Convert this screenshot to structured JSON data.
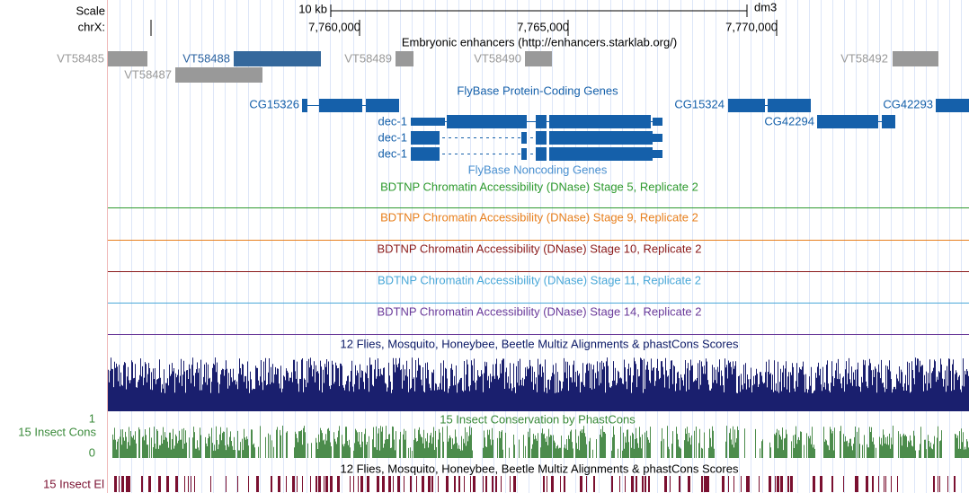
{
  "ruler": {
    "scale": "Scale",
    "scale_bar": "10 kb",
    "assembly": "dm3",
    "chrom": "chrX:",
    "positions": [
      "7,760,000",
      "7,765,000",
      "7,770,000"
    ]
  },
  "enhancers": {
    "title": "Embryonic enhancers (http://enhancers.starklab.org/)",
    "items": [
      "VT58485",
      "VT58488",
      "VT58489",
      "VT58490",
      "VT58492",
      "VT58487"
    ]
  },
  "genes": {
    "title": "FlyBase Protein-Coding Genes",
    "items": [
      "CG15326",
      "dec-1",
      "dec-1",
      "dec-1",
      "CG15324",
      "CG42294",
      "CG42293"
    ],
    "noncoding_title": "FlyBase Noncoding Genes"
  },
  "tracks": [
    "BDTNP Chromatin Accessibility (DNase) Stage 5, Replicate 2",
    "BDTNP Chromatin Accessibility (DNase) Stage 9, Replicate 2",
    "BDTNP Chromatin Accessibility (DNase) Stage 10, Replicate 2",
    "BDTNP Chromatin Accessibility (DNase) Stage 11, Replicate 2",
    "BDTNP Chromatin Accessibility (DNase) Stage 14, Replicate 2"
  ],
  "conservation": {
    "multiz_title": "12 Flies, Mosquito, Honeybee, Beetle Multiz Alignments & phastCons Scores",
    "phastcons_title": "15 Insect Conservation by PhastCons",
    "cons_label": "15 Insect Cons",
    "max_label": "1",
    "min_label": "0",
    "elements_title": "12 Flies, Mosquito, Honeybee, Beetle Multiz Alignments & phastCons Scores",
    "elements_label": "15 Insect El"
  }
}
